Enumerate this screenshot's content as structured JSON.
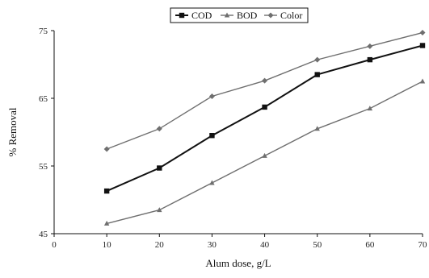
{
  "chart_data": {
    "type": "line",
    "title": "",
    "xlabel": "Alum dose, g/L",
    "ylabel": "% Removal",
    "xlim": [
      0,
      70
    ],
    "ylim": [
      45,
      75
    ],
    "x_ticks": [
      0,
      10,
      20,
      30,
      40,
      50,
      60,
      70
    ],
    "y_ticks": [
      45,
      55,
      65,
      75
    ],
    "grid": false,
    "legend_position": "top-center",
    "x": [
      10,
      20,
      30,
      40,
      50,
      60,
      70
    ],
    "series": [
      {
        "name": "COD",
        "marker": "square",
        "color": "#111111",
        "values": [
          51.3,
          54.7,
          59.5,
          63.7,
          68.5,
          70.7,
          72.8
        ]
      },
      {
        "name": "BOD",
        "marker": "triangle",
        "color": "#6f6f6f",
        "values": [
          46.5,
          48.5,
          52.5,
          56.5,
          60.5,
          63.5,
          67.5
        ]
      },
      {
        "name": "Color",
        "marker": "diamond",
        "color": "#6f6f6f",
        "values": [
          57.5,
          60.5,
          65.3,
          67.6,
          70.7,
          72.7,
          74.7
        ]
      }
    ]
  }
}
